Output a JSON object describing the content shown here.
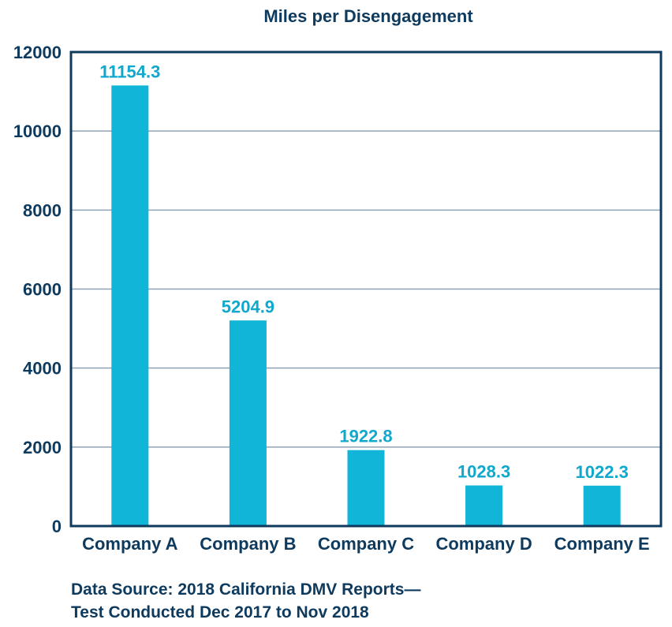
{
  "chart_data": {
    "type": "bar",
    "title": "Miles per Disengagement",
    "categories": [
      "Company A",
      "Company B",
      "Company C",
      "Company D",
      "Company E"
    ],
    "values": [
      11154.3,
      5204.9,
      1922.8,
      1028.3,
      1022.3
    ],
    "data_labels": [
      "11154.3",
      "5204.9",
      "1922.8",
      "1028.3",
      "1022.3"
    ],
    "yticks": [
      "0",
      "2000",
      "4000",
      "6000",
      "8000",
      "10000",
      "12000"
    ],
    "ylim": [
      0,
      12000
    ],
    "xlabel": "",
    "ylabel": "",
    "grid": true,
    "legend": "none"
  },
  "source": {
    "line1": "Data Source: 2018 California DMV Reports—",
    "line2": "Test Conducted Dec 2017 to Nov 2018"
  },
  "colors": {
    "bar": "#10b5d8",
    "data_label": "#10a8cc",
    "text": "#0e3a5e",
    "frame": "#0e3a5e",
    "grid": "#8fa3b8"
  }
}
